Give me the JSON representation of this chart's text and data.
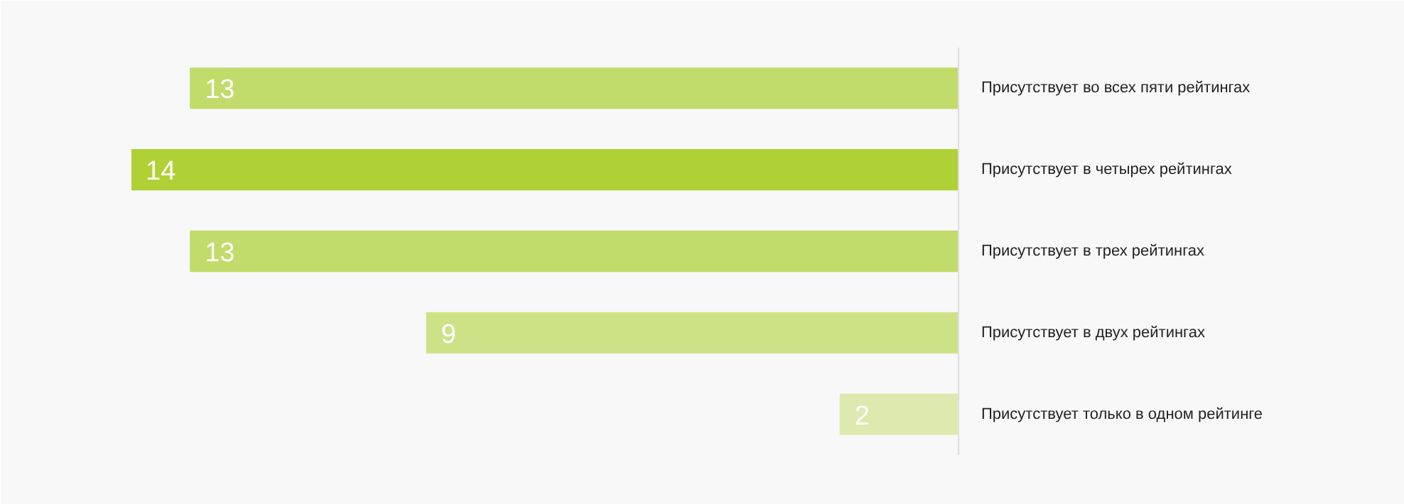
{
  "chart_data": {
    "type": "bar",
    "orientation": "horizontal",
    "categories": [
      "Присутствует во всех пяти рейтингах",
      "Присутствует в четырех рейтингах",
      "Присутствует в трех рейтингах",
      "Присутствует в двух рейтингах",
      "Присутствует только в одном рейтинге"
    ],
    "values": [
      13,
      14,
      13,
      9,
      2
    ],
    "colors": [
      "#c1dc6a",
      "#afd136",
      "#c1dc6a",
      "#cde287",
      "#dde9ae"
    ],
    "xlim": [
      14,
      0
    ],
    "data_labels": true,
    "tick_labels": "y"
  }
}
